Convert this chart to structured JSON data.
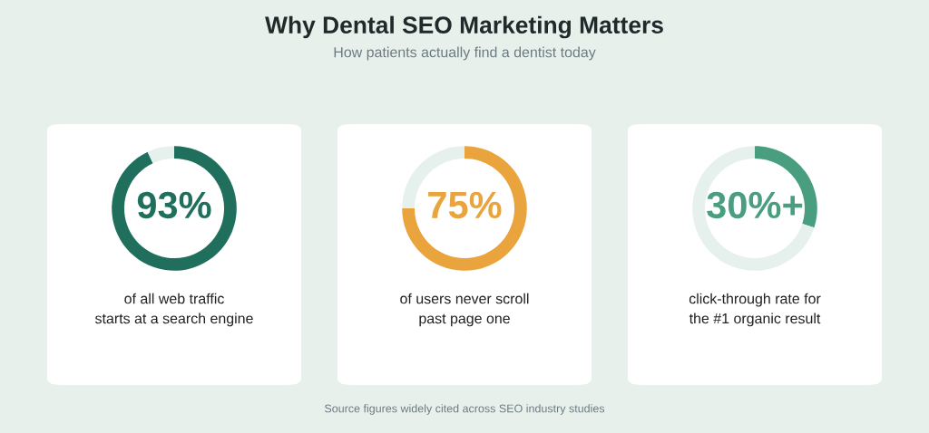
{
  "chart_data": [
    {
      "type": "donut",
      "categories": [
        null,
        null
      ],
      "values": [
        93,
        7
      ],
      "colors": [
        "#1f6f5c",
        "#e6f0ec"
      ],
      "value_labels": [
        "93%",
        null
      ],
      "annotations": [
        "of all web traffic\nstarts at a search engine"
      ]
    },
    {
      "type": "donut",
      "title": "Why Dental SEO Marketing Matters",
      "subtitle": "How patients actually find a dentist today",
      "categories": [
        null,
        null
      ],
      "values": [
        75,
        25
      ],
      "colors": [
        "#e9a43d",
        "#e6f0ec"
      ],
      "value_labels": [
        "75%",
        null
      ],
      "annotations": [
        "of users never scroll\npast page one",
        "Source figures widely cited across SEO industry studies"
      ]
    },
    {
      "type": "donut",
      "categories": [
        null,
        null
      ],
      "values": [
        30,
        70
      ],
      "colors": [
        "#4a9e80",
        "#e6f0ec"
      ],
      "value_labels": [
        "30%+",
        null
      ],
      "annotations": [
        "click-through rate for\nthe #1 organic result"
      ]
    }
  ]
}
